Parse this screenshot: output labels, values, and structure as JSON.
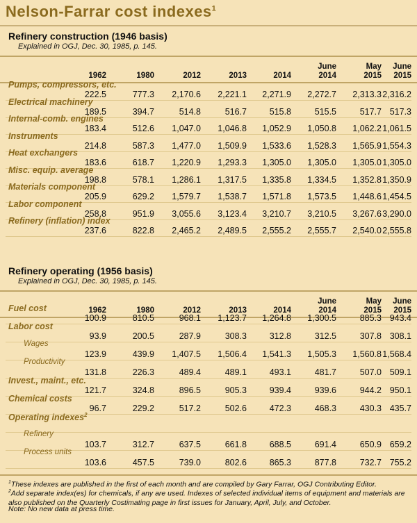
{
  "title": "Nelson-Farrar cost indexes",
  "title_sup": "1",
  "sections": [
    {
      "title": "Refinery construction (1946 basis)",
      "note": "Explained in OGJ, Dec. 30, 1985, p. 145.",
      "columns": [
        [
          "",
          "1962"
        ],
        [
          "",
          "1980"
        ],
        [
          "",
          "2012"
        ],
        [
          "",
          "2013"
        ],
        [
          "",
          "2014"
        ],
        [
          "June",
          "2014"
        ],
        [
          "May",
          "2015"
        ],
        [
          "June",
          "2015"
        ]
      ],
      "rows": [
        {
          "label": "Pumps, compressors, etc.",
          "sub": false,
          "sup": "",
          "values": [
            "222.5",
            "777.3",
            "2,170.6",
            "2,221.1",
            "2,271.9",
            "2,272.7",
            "2,313.3",
            "2,316.2"
          ]
        },
        {
          "label": "Electrical machinery",
          "sub": false,
          "sup": "",
          "values": [
            "189.5",
            "394.7",
            "514.8",
            "516.7",
            "515.8",
            "515.5",
            "517.7",
            "517.3"
          ]
        },
        {
          "label": "Internal-comb. engines",
          "sub": false,
          "sup": "",
          "values": [
            "183.4",
            "512.6",
            "1,047.0",
            "1,046.8",
            "1,052.9",
            "1,050.8",
            "1,062.2",
            "1,061.5"
          ]
        },
        {
          "label": "Instruments",
          "sub": false,
          "sup": "",
          "values": [
            "214.8",
            "587.3",
            "1,477.0",
            "1,509.9",
            "1,533.6",
            "1,528.3",
            "1,565.9",
            "1,554.3"
          ]
        },
        {
          "label": "Heat exchangers",
          "sub": false,
          "sup": "",
          "values": [
            "183.6",
            "618.7",
            "1,220.9",
            "1,293.3",
            "1,305.0",
            "1,305.0",
            "1,305.0",
            "1,305.0"
          ]
        },
        {
          "label": "Misc. equip. average",
          "sub": false,
          "sup": "",
          "values": [
            "198.8",
            "578.1",
            "1,286.1",
            "1,317.5",
            "1,335.8",
            "1,334.5",
            "1,352.8",
            "1,350.9"
          ]
        },
        {
          "label": "Materials component",
          "sub": false,
          "sup": "",
          "values": [
            "205.9",
            "629.2",
            "1,579.7",
            "1,538.7",
            "1,571.8",
            "1,573.5",
            "1,448.6",
            "1,454.5"
          ]
        },
        {
          "label": "Labor component",
          "sub": false,
          "sup": "",
          "values": [
            "258.8",
            "951.9",
            "3,055.6",
            "3,123.4",
            "3,210.7",
            "3,210.5",
            "3,267.6",
            "3,290.0"
          ]
        },
        {
          "label": "Refinery (inflation) index",
          "sub": false,
          "sup": "",
          "values": [
            "237.6",
            "822.8",
            "2,465.2",
            "2,489.5",
            "2,555.2",
            "2,555.7",
            "2,540.0",
            "2,555.8"
          ]
        }
      ]
    },
    {
      "title": "Refinery operating (1956 basis)",
      "note": "Explained in OGJ, Dec. 30, 1985, p. 145.",
      "columns": [
        [
          "",
          "1962"
        ],
        [
          "",
          "1980"
        ],
        [
          "",
          "2012"
        ],
        [
          "",
          "2013"
        ],
        [
          "",
          "2014"
        ],
        [
          "June",
          "2014"
        ],
        [
          "May",
          "2015"
        ],
        [
          "June",
          "2015"
        ]
      ],
      "rows": [
        {
          "label": "Fuel cost",
          "sub": false,
          "sup": "",
          "values": [
            "100.9",
            "810.5",
            "968.1",
            "1,123.7",
            "1,264.8",
            "1,300.5",
            "885.3",
            "943.4"
          ]
        },
        {
          "label": "Labor cost",
          "sub": false,
          "sup": "",
          "values": [
            "93.9",
            "200.5",
            "287.9",
            "308.3",
            "312.8",
            "312.5",
            "307.8",
            "308.1"
          ]
        },
        {
          "label": "Wages",
          "sub": true,
          "sup": "",
          "values": [
            "123.9",
            "439.9",
            "1,407.5",
            "1,506.4",
            "1,541.3",
            "1,505.3",
            "1,560.8",
            "1,568.4"
          ]
        },
        {
          "label": "Productivity",
          "sub": true,
          "sup": "",
          "values": [
            "131.8",
            "226.3",
            "489.4",
            "489.1",
            "493.1",
            "481.7",
            "507.0",
            "509.1"
          ]
        },
        {
          "label": "Invest., maint., etc.",
          "sub": false,
          "sup": "",
          "values": [
            "121.7",
            "324.8",
            "896.5",
            "905.3",
            "939.4",
            "939.6",
            "944.2",
            "950.1"
          ]
        },
        {
          "label": "Chemical costs",
          "sub": false,
          "sup": "",
          "values": [
            "96.7",
            "229.2",
            "517.2",
            "502.6",
            "472.3",
            "468.3",
            "430.3",
            "435.7"
          ]
        },
        {
          "label": "Operating indexes",
          "sub": false,
          "sup": "2",
          "values": [
            "",
            "",
            "",
            "",
            "",
            "",
            "",
            ""
          ]
        },
        {
          "label": "Refinery",
          "sub": true,
          "sup": "",
          "values": [
            "103.7",
            "312.7",
            "637.5",
            "661.8",
            "688.5",
            "691.4",
            "650.9",
            "659.2"
          ]
        },
        {
          "label": "Process units",
          "sub": true,
          "sup": "",
          "values": [
            "103.6",
            "457.5",
            "739.0",
            "802.6",
            "865.3",
            "877.8",
            "732.7",
            "755.2"
          ]
        }
      ]
    }
  ],
  "footnotes": [
    {
      "sup": "1",
      "text": "These indexes are published in the first of each month and are compiled by Gary Farrar, OGJ Contributing Editor."
    },
    {
      "sup": "2",
      "text": "Add separate index(es) for chemicals, if any are used. Indexes of selected individual items of equipment and materials are also published on the Quarterly Costimating page in first issues for January, April, July, and October."
    },
    {
      "sup": "",
      "text": "Note: No new data at press time."
    }
  ]
}
